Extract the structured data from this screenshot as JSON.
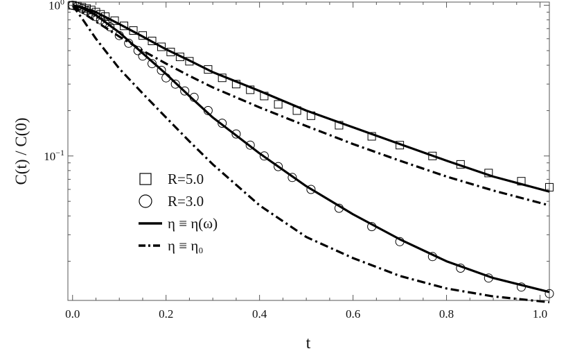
{
  "chart_data": {
    "type": "line",
    "title": "",
    "xlabel": "t",
    "ylabel": "C(t) / C(0)",
    "xlim": [
      -0.01,
      1.02
    ],
    "ylim": [
      0.011,
      1.05
    ],
    "y_scale": "log",
    "grid": false,
    "legend_placement": "center-left",
    "x_ticks": [
      {
        "value": 0.0,
        "label": "0.0"
      },
      {
        "value": 0.2,
        "label": "0.2"
      },
      {
        "value": 0.4,
        "label": "0.4"
      },
      {
        "value": 0.6,
        "label": "0.6"
      },
      {
        "value": 0.8,
        "label": "0.8"
      },
      {
        "value": 1.0,
        "label": "1.0"
      }
    ],
    "y_ticks": [
      {
        "value": 1.0,
        "base": "10",
        "exp": "0"
      },
      {
        "value": 0.1,
        "base": "10",
        "exp": "−1"
      }
    ],
    "series": [
      {
        "name": "R=5.0",
        "style": "square-markers",
        "x": [
          0.0,
          0.01,
          0.02,
          0.03,
          0.04,
          0.05,
          0.06,
          0.07,
          0.09,
          0.11,
          0.13,
          0.15,
          0.17,
          0.19,
          0.21,
          0.23,
          0.25,
          0.29,
          0.32,
          0.35,
          0.38,
          0.41,
          0.44,
          0.48,
          0.51,
          0.57,
          0.64,
          0.7,
          0.77,
          0.83,
          0.89,
          0.96,
          1.02
        ],
        "y": [
          1.0,
          0.99,
          0.97,
          0.95,
          0.93,
          0.9,
          0.87,
          0.84,
          0.79,
          0.73,
          0.68,
          0.63,
          0.58,
          0.53,
          0.49,
          0.455,
          0.425,
          0.375,
          0.33,
          0.3,
          0.275,
          0.25,
          0.22,
          0.2,
          0.185,
          0.16,
          0.135,
          0.118,
          0.1,
          0.088,
          0.077,
          0.068,
          0.062
        ]
      },
      {
        "name": "R=3.0",
        "style": "circle-markers",
        "x": [
          0.0,
          0.01,
          0.02,
          0.03,
          0.04,
          0.05,
          0.06,
          0.07,
          0.08,
          0.1,
          0.12,
          0.14,
          0.15,
          0.17,
          0.19,
          0.2,
          0.22,
          0.24,
          0.26,
          0.29,
          0.32,
          0.35,
          0.38,
          0.41,
          0.44,
          0.47,
          0.51,
          0.57,
          0.64,
          0.7,
          0.77,
          0.83,
          0.89,
          0.96,
          1.02
        ],
        "y": [
          1.0,
          0.98,
          0.95,
          0.92,
          0.88,
          0.84,
          0.8,
          0.76,
          0.72,
          0.63,
          0.56,
          0.5,
          0.46,
          0.41,
          0.37,
          0.33,
          0.3,
          0.27,
          0.245,
          0.2,
          0.165,
          0.14,
          0.118,
          0.1,
          0.085,
          0.072,
          0.06,
          0.045,
          0.034,
          0.027,
          0.0215,
          0.018,
          0.0155,
          0.0135,
          0.0122
        ]
      },
      {
        "name": "η ≡ η(ω)",
        "style": "solid",
        "x": [
          0.0,
          0.02,
          0.05,
          0.1,
          0.15,
          0.2,
          0.25,
          0.3,
          0.4,
          0.5,
          0.6,
          0.7,
          0.8,
          0.9,
          1.02
        ],
        "y": [
          1.0,
          0.97,
          0.9,
          0.75,
          0.62,
          0.51,
          0.43,
          0.36,
          0.27,
          0.2,
          0.155,
          0.12,
          0.093,
          0.073,
          0.058
        ]
      },
      {
        "name": "η ≡ η(ω)",
        "style": "solid",
        "x": [
          0.0,
          0.02,
          0.05,
          0.1,
          0.15,
          0.2,
          0.25,
          0.3,
          0.4,
          0.5,
          0.6,
          0.7,
          0.8,
          0.9,
          1.02
        ],
        "y": [
          1.0,
          0.96,
          0.86,
          0.66,
          0.48,
          0.35,
          0.25,
          0.18,
          0.104,
          0.063,
          0.041,
          0.028,
          0.02,
          0.0155,
          0.0125
        ]
      },
      {
        "name": "η ≡ η₀",
        "style": "dash-dot",
        "x": [
          0.0,
          0.02,
          0.05,
          0.1,
          0.15,
          0.2,
          0.25,
          0.3,
          0.4,
          0.5,
          0.6,
          0.7,
          0.8,
          0.9,
          1.02
        ],
        "y": [
          1.0,
          0.9,
          0.78,
          0.62,
          0.5,
          0.41,
          0.34,
          0.285,
          0.21,
          0.158,
          0.12,
          0.093,
          0.073,
          0.059,
          0.047
        ]
      },
      {
        "name": "η ≡ η₀",
        "style": "dash-dot",
        "x": [
          0.0,
          0.02,
          0.05,
          0.1,
          0.15,
          0.2,
          0.25,
          0.3,
          0.4,
          0.5,
          0.6,
          0.7,
          0.8,
          0.9,
          1.02
        ],
        "y": [
          1.0,
          0.82,
          0.6,
          0.38,
          0.26,
          0.18,
          0.125,
          0.088,
          0.047,
          0.029,
          0.021,
          0.016,
          0.0132,
          0.0117,
          0.0107
        ]
      }
    ],
    "legend": [
      {
        "label": "R=5.0",
        "style": "square-markers"
      },
      {
        "label": "R=3.0",
        "style": "circle-markers"
      },
      {
        "label": "η ≡ η(ω)",
        "style": "solid"
      },
      {
        "label": "η ≡ η₀",
        "style": "dash-dot"
      }
    ],
    "colors": {
      "ink": "#000000",
      "frame": "#555555"
    }
  }
}
